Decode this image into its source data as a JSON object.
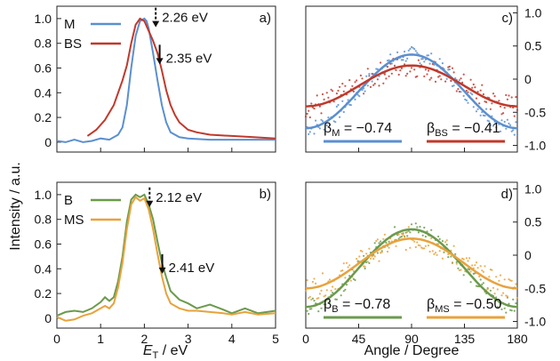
{
  "figure": {
    "y_axis_label": "Intensity / a.u.",
    "x_axis_label_left_main": "E",
    "x_axis_label_left_sub": "T",
    "x_axis_label_left_unit": " / eV",
    "x_axis_label_right": "Angle / Degree"
  },
  "chart_data": [
    {
      "panel": "a)",
      "type": "line",
      "xlim": [
        0,
        5
      ],
      "ylim": [
        -0.08,
        1.1
      ],
      "y_ticks": [
        "0",
        "0.2",
        "0.4",
        "0.6",
        "0.8",
        "1.0"
      ],
      "x_tick_labels_shown": false,
      "series": [
        {
          "name": "M",
          "color": "#5b8fd0",
          "x": [
            0.0,
            0.2,
            0.4,
            0.6,
            0.8,
            1.0,
            1.2,
            1.4,
            1.5,
            1.6,
            1.7,
            1.8,
            1.9,
            2.0,
            2.05,
            2.1,
            2.2,
            2.3,
            2.4,
            2.5,
            2.6,
            2.8,
            3.0,
            3.5,
            4.0,
            4.5,
            5.0
          ],
          "y": [
            0.01,
            0.0,
            0.02,
            0.0,
            0.01,
            0.03,
            0.02,
            0.06,
            0.12,
            0.3,
            0.6,
            0.86,
            0.98,
            1.0,
            0.98,
            0.92,
            0.72,
            0.5,
            0.3,
            0.16,
            0.08,
            0.04,
            0.03,
            0.02,
            0.02,
            0.02,
            0.02
          ]
        },
        {
          "name": "BS",
          "color": "#c0392b",
          "x": [
            0.7,
            0.9,
            1.1,
            1.3,
            1.5,
            1.6,
            1.7,
            1.8,
            1.9,
            2.0,
            2.1,
            2.2,
            2.3,
            2.4,
            2.5,
            2.6,
            2.7,
            2.8,
            3.0,
            3.2,
            3.5,
            4.0,
            4.5,
            5.0
          ],
          "y": [
            0.05,
            0.1,
            0.18,
            0.3,
            0.5,
            0.62,
            0.8,
            0.95,
            1.0,
            0.98,
            0.9,
            0.82,
            0.72,
            0.58,
            0.42,
            0.3,
            0.22,
            0.16,
            0.1,
            0.08,
            0.06,
            0.05,
            0.04,
            0.03
          ]
        }
      ],
      "annotations": [
        {
          "text": "2.26 eV",
          "x": 2.26,
          "y": 0.93,
          "arrow": "dashed"
        },
        {
          "text": "2.35 eV",
          "x": 2.35,
          "y": 0.63,
          "arrow": "solid"
        }
      ]
    },
    {
      "panel": "b)",
      "type": "line",
      "xlim": [
        0,
        5
      ],
      "ylim": [
        -0.08,
        1.1
      ],
      "x_ticks": [
        "0",
        "1",
        "2",
        "3",
        "4",
        "5"
      ],
      "y_ticks": [
        "0",
        "0.2",
        "0.4",
        "0.6",
        "0.8",
        "1.0"
      ],
      "series": [
        {
          "name": "B",
          "color": "#6b9a4c",
          "x": [
            0.0,
            0.2,
            0.4,
            0.6,
            0.8,
            1.0,
            1.1,
            1.2,
            1.3,
            1.4,
            1.5,
            1.6,
            1.7,
            1.8,
            1.9,
            2.0,
            2.1,
            2.2,
            2.3,
            2.4,
            2.5,
            2.6,
            2.8,
            3.0,
            3.2,
            3.5,
            3.8,
            4.0,
            4.3,
            4.6,
            5.0
          ],
          "y": [
            0.02,
            0.05,
            0.06,
            0.05,
            0.08,
            0.13,
            0.17,
            0.14,
            0.17,
            0.3,
            0.5,
            0.78,
            0.96,
            1.0,
            0.98,
            1.0,
            0.92,
            0.8,
            0.62,
            0.45,
            0.33,
            0.22,
            0.15,
            0.12,
            0.08,
            0.11,
            0.07,
            0.04,
            0.08,
            0.04,
            0.06
          ]
        },
        {
          "name": "MS",
          "color": "#e8a23c",
          "x": [
            0.0,
            0.2,
            0.4,
            0.6,
            0.8,
            1.0,
            1.1,
            1.2,
            1.3,
            1.4,
            1.5,
            1.6,
            1.7,
            1.8,
            1.9,
            2.0,
            2.1,
            2.2,
            2.3,
            2.4,
            2.5,
            2.6,
            2.8,
            3.0,
            3.2,
            3.5,
            3.8,
            4.0,
            4.3,
            4.6,
            5.0
          ],
          "y": [
            0.01,
            -0.02,
            -0.01,
            0.02,
            0.04,
            0.08,
            0.1,
            0.08,
            0.12,
            0.25,
            0.45,
            0.72,
            0.92,
            0.98,
            0.95,
            0.97,
            0.88,
            0.72,
            0.52,
            0.34,
            0.2,
            0.12,
            0.08,
            0.06,
            0.06,
            0.05,
            0.04,
            0.03,
            0.05,
            0.03,
            0.04
          ]
        }
      ],
      "annotations": [
        {
          "text": "2.12 eV",
          "x": 2.12,
          "y": 0.9,
          "arrow": "dashed"
        },
        {
          "text": "2.41 eV",
          "x": 2.41,
          "y": 0.36,
          "arrow": "solid"
        }
      ]
    },
    {
      "panel": "c)",
      "type": "scatter",
      "xlim": [
        0,
        180
      ],
      "ylim": [
        -1.1,
        1.1
      ],
      "y_ticks": [
        "-1.0",
        "-0.5",
        "0",
        "0.5",
        "1.0"
      ],
      "x_tick_labels_shown": false,
      "series": [
        {
          "name": "M",
          "color": "#5b8fd0",
          "beta": -0.74,
          "beta_label": "β",
          "beta_sub": "M",
          "beta_value": "= −0.74"
        },
        {
          "name": "BS",
          "color": "#c0392b",
          "beta": -0.41,
          "beta_label": "β",
          "beta_sub": "BS",
          "beta_value": "= −0.41"
        }
      ]
    },
    {
      "panel": "d)",
      "type": "scatter",
      "xlim": [
        0,
        180
      ],
      "ylim": [
        -1.1,
        1.1
      ],
      "x_ticks": [
        "0",
        "45",
        "90",
        "135",
        "180"
      ],
      "y_ticks": [
        "-1.0",
        "-0.5",
        "0",
        "0.5",
        "1.0"
      ],
      "series": [
        {
          "name": "B",
          "color": "#6b9a4c",
          "beta": -0.78,
          "beta_label": "β",
          "beta_sub": "B",
          "beta_value": "= −0.78"
        },
        {
          "name": "MS",
          "color": "#e8a23c",
          "beta": -0.5,
          "beta_label": "β",
          "beta_sub": "MS",
          "beta_value": "= −0.50"
        }
      ]
    }
  ]
}
